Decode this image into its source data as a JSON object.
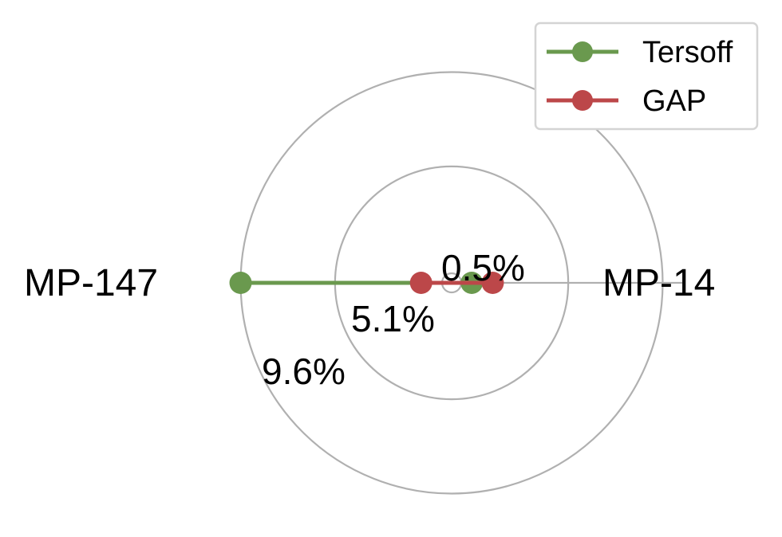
{
  "chart_data": {
    "type": "radar",
    "axes": [
      "MP-14",
      "MP-147"
    ],
    "radial_ticks": [
      "0.5%",
      "5.1%",
      "9.6%"
    ],
    "radial_tick_values": [
      0.5,
      5.1,
      9.6
    ],
    "rlim": [
      0,
      10.0
    ],
    "grid": true,
    "legend_position": "top-right",
    "series": [
      {
        "name": "Tersoff",
        "color": "#6a994e",
        "values": [
          0.5,
          9.6
        ]
      },
      {
        "name": "GAP",
        "color": "#bc4749",
        "values": [
          1.5,
          1.0
        ]
      }
    ]
  },
  "legend": {
    "items": [
      "Tersoff",
      "GAP"
    ]
  }
}
